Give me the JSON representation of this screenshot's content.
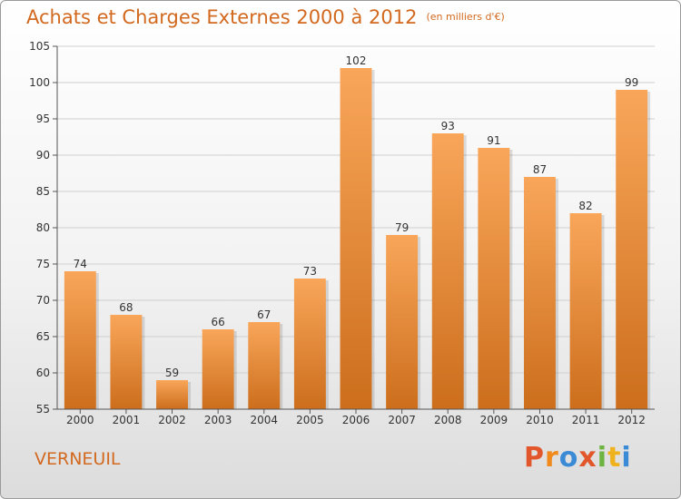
{
  "chart_data": {
    "type": "bar",
    "title": "Achats et Charges Externes 2000 à 2012",
    "subtitle": "(en milliers d'€)",
    "categories": [
      "2000",
      "2001",
      "2002",
      "2003",
      "2004",
      "2005",
      "2006",
      "2007",
      "2008",
      "2009",
      "2010",
      "2011",
      "2012"
    ],
    "values": [
      74,
      68,
      59,
      66,
      67,
      73,
      102,
      79,
      93,
      91,
      87,
      82,
      99
    ],
    "ylim": [
      55,
      105
    ],
    "yticks": [
      55,
      60,
      65,
      70,
      75,
      80,
      85,
      90,
      95,
      100,
      105
    ],
    "grid": true,
    "bar_color_top": "#f9a65a",
    "bar_color_bottom": "#cc6e1c"
  },
  "footer": {
    "commune": "VERNEUIL",
    "logo": "Proxiti",
    "logo_colors": [
      "#e2562c",
      "#f08a1c",
      "#3b8ad6",
      "#e2562c",
      "#6db33f",
      "#f0b21c",
      "#3b8ad6"
    ]
  }
}
